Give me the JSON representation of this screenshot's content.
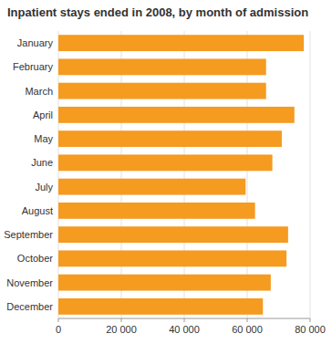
{
  "chart_data": {
    "type": "bar",
    "orientation": "horizontal",
    "title": "Inpatient stays ended in 2008, by month of admission",
    "categories": [
      "January",
      "February",
      "March",
      "April",
      "May",
      "June",
      "July",
      "August",
      "September",
      "October",
      "November",
      "December"
    ],
    "values": [
      78000,
      66000,
      66000,
      75000,
      71000,
      68000,
      59500,
      62500,
      73000,
      72500,
      67500,
      65000
    ],
    "color": "#F59B20",
    "xlim": [
      0,
      80000
    ],
    "xticks": [
      0,
      {
        "value": 20000,
        "label": "20 000"
      },
      {
        "value": 40000,
        "label": "40 000"
      },
      {
        "value": 60000,
        "label": "60 000"
      },
      {
        "value": 80000,
        "label": "80 000"
      }
    ],
    "grid": true
  }
}
